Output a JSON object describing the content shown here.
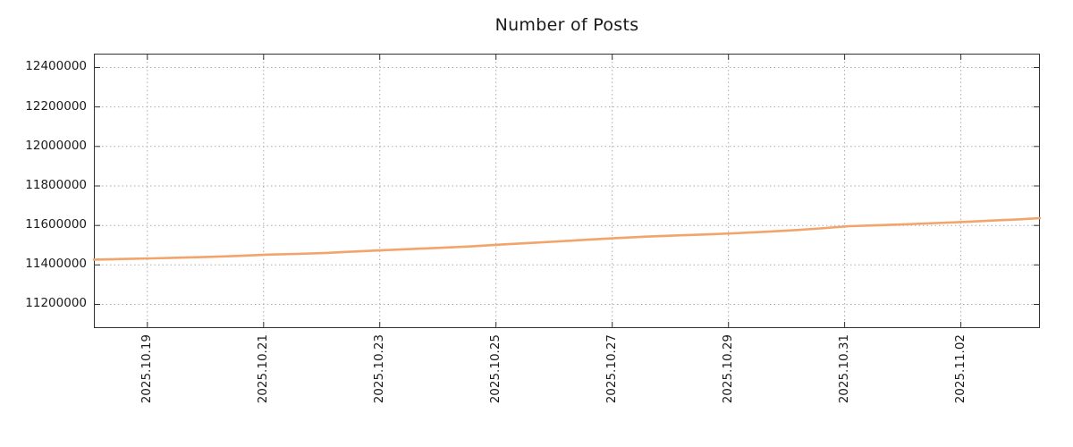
{
  "chart_data": {
    "type": "line",
    "title": "Number of Posts",
    "xlabel": "",
    "ylabel": "",
    "grid": true,
    "legend_position": "none",
    "xlim": [
      0,
      16.28
    ],
    "ylim": [
      11080000,
      12470000
    ],
    "y_ticks": [
      {
        "y": 11200000,
        "label": "11200000"
      },
      {
        "y": 11400000,
        "label": "11400000"
      },
      {
        "y": 11600000,
        "label": "11600000"
      },
      {
        "y": 11800000,
        "label": "11800000"
      },
      {
        "y": 12000000,
        "label": "12000000"
      },
      {
        "y": 12200000,
        "label": "12200000"
      },
      {
        "y": 12400000,
        "label": "12400000"
      }
    ],
    "x_ticks": [
      {
        "x": 0.92,
        "label": "2025.10.19"
      },
      {
        "x": 2.92,
        "label": "2025.10.21"
      },
      {
        "x": 4.92,
        "label": "2025.10.23"
      },
      {
        "x": 6.92,
        "label": "2025.10.25"
      },
      {
        "x": 8.92,
        "label": "2025.10.27"
      },
      {
        "x": 10.92,
        "label": "2025.10.29"
      },
      {
        "x": 12.92,
        "label": "2025.10.31"
      },
      {
        "x": 14.92,
        "label": "2025.11.02"
      }
    ],
    "series": [
      {
        "name": "number-of-posts",
        "color": "#f2a46b",
        "points": [
          [
            0.0,
            11427000
          ],
          [
            0.5,
            11430000
          ],
          [
            1.0,
            11433000
          ],
          [
            1.5,
            11437000
          ],
          [
            2.0,
            11441000
          ],
          [
            2.5,
            11446000
          ],
          [
            3.0,
            11452000
          ],
          [
            3.5,
            11456000
          ],
          [
            4.0,
            11461000
          ],
          [
            4.5,
            11468000
          ],
          [
            5.0,
            11475000
          ],
          [
            5.5,
            11481000
          ],
          [
            6.0,
            11487000
          ],
          [
            6.5,
            11494000
          ],
          [
            7.0,
            11503000
          ],
          [
            7.5,
            11511000
          ],
          [
            8.0,
            11519000
          ],
          [
            8.5,
            11528000
          ],
          [
            9.0,
            11536000
          ],
          [
            9.5,
            11543000
          ],
          [
            10.0,
            11549000
          ],
          [
            10.5,
            11554000
          ],
          [
            11.0,
            11560000
          ],
          [
            11.5,
            11567000
          ],
          [
            12.0,
            11575000
          ],
          [
            12.5,
            11585000
          ],
          [
            13.0,
            11596000
          ],
          [
            13.5,
            11601000
          ],
          [
            14.0,
            11606000
          ],
          [
            14.5,
            11612000
          ],
          [
            15.0,
            11618000
          ],
          [
            15.5,
            11625000
          ],
          [
            16.0,
            11632000
          ],
          [
            16.28,
            11637000
          ]
        ]
      }
    ]
  },
  "colors": {
    "background": "#ffffff",
    "grid": "#aaaaaa",
    "border": "#333333",
    "tick": "#333333",
    "text": "#1a1a1a"
  }
}
